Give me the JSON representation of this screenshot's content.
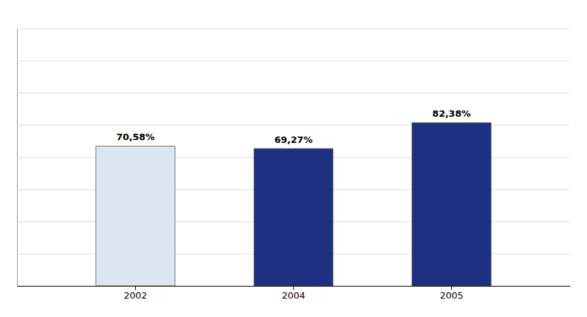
{
  "chart_data": {
    "type": "bar",
    "categories": [
      "2002",
      "2004",
      "2005"
    ],
    "values": [
      70.58,
      69.27,
      82.38
    ],
    "value_labels": [
      "70,58%",
      "69,27%",
      "82,38%"
    ],
    "data_labels": true,
    "colors": [
      "#dce6f1",
      "#1e3080",
      "#1e3080"
    ],
    "ylim": [
      0,
      130
    ],
    "yticks": [
      0,
      16.25,
      32.5,
      48.75,
      65,
      81.25,
      97.5,
      113.75,
      130
    ],
    "grid": true,
    "tick_labels": "x"
  }
}
